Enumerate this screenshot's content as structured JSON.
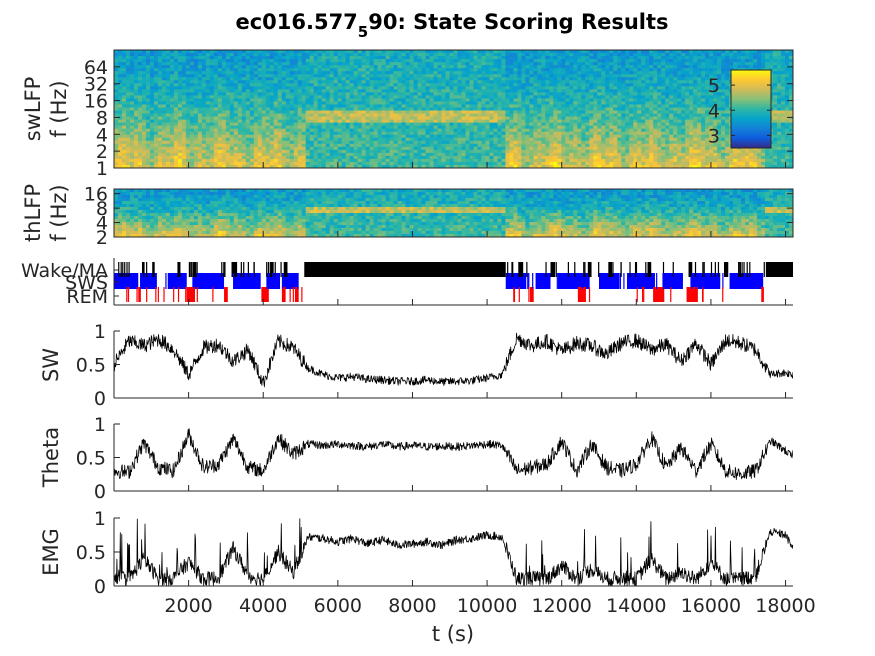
{
  "chart_data": {
    "type": "line",
    "title_main": "ec016.577",
    "title_sub": "5",
    "title_tail": "90: State Scoring Results",
    "x_label": "t (s)",
    "x_range": [
      0,
      18200
    ],
    "x_ticks": [
      "2000",
      "4000",
      "6000",
      "8000",
      "10000",
      "12000",
      "14000",
      "16000",
      "18000"
    ],
    "x_tick_values": [
      2000,
      4000,
      6000,
      8000,
      10000,
      12000,
      14000,
      16000,
      18000
    ],
    "colors": {
      "parula": [
        "#352a87",
        "#0f5cdd",
        "#1481d6",
        "#06a4ca",
        "#2eb7a4",
        "#87bf77",
        "#d1bb59",
        "#fec832",
        "#f9fb0e"
      ],
      "wake": "#000000",
      "sws": "#0000ff",
      "rem": "#ff0000",
      "trace": "#000000"
    },
    "panels": [
      {
        "id": "swLFP",
        "kind": "spectrogram",
        "ylabel_line1": "swLFP",
        "ylabel_line2": "f (Hz)",
        "y_scale": "log",
        "y_ticks": [
          "1",
          "2",
          "4",
          "8",
          "16",
          "32",
          "64"
        ],
        "y_range": [
          1,
          128
        ],
        "colorbar": {
          "ticks": [
            "3",
            "4",
            "5"
          ],
          "range": [
            2.5,
            5.6
          ]
        }
      },
      {
        "id": "thLFP",
        "kind": "spectrogram",
        "ylabel_line1": "thLFP",
        "ylabel_line2": "f (Hz)",
        "y_scale": "log",
        "y_ticks": [
          "2",
          "4",
          "8",
          "16"
        ],
        "y_range": [
          2,
          20
        ]
      },
      {
        "id": "states",
        "kind": "hypnogram",
        "y_ticks": [
          "Wake/MA",
          "SWS",
          "REM"
        ],
        "episodes": {
          "wake": [
            [
              5100,
              10500
            ],
            [
              17500,
              18200
            ],
            [
              750,
              820
            ],
            [
              1700,
              1780
            ],
            [
              2100,
              2200
            ],
            [
              3150,
              3300
            ],
            [
              4200,
              4280
            ],
            [
              4550,
              4650
            ],
            [
              10850,
              10950
            ],
            [
              11700,
              11800
            ],
            [
              12700,
              12800
            ],
            [
              13250,
              13350
            ],
            [
              14300,
              14400
            ],
            [
              15400,
              15500
            ],
            [
              16350,
              16450
            ]
          ],
          "sws": [
            [
              0,
              650
            ],
            [
              700,
              1150
            ],
            [
              1450,
              1950
            ],
            [
              2100,
              2950
            ],
            [
              3200,
              3900
            ],
            [
              4100,
              4450
            ],
            [
              4500,
              4950
            ],
            [
              10500,
              11050
            ],
            [
              11300,
              11700
            ],
            [
              11900,
              12750
            ],
            [
              13000,
              13550
            ],
            [
              13750,
              14500
            ],
            [
              14700,
              15250
            ],
            [
              15450,
              16250
            ],
            [
              16500,
              17400
            ]
          ],
          "rem": [
            [
              650,
              720
            ],
            [
              1950,
              2150
            ],
            [
              2950,
              3050
            ],
            [
              3950,
              4150
            ],
            [
              4500,
              4600
            ],
            [
              4850,
              4950
            ],
            [
              10700,
              10750
            ],
            [
              11150,
              11250
            ],
            [
              12450,
              12650
            ],
            [
              14450,
              14750
            ],
            [
              15350,
              15650
            ],
            [
              17350,
              17420
            ]
          ]
        }
      },
      {
        "id": "SW",
        "kind": "trace",
        "ylabel": "SW",
        "y_range": [
          0,
          1
        ],
        "y_ticks": [
          "0",
          "0.5",
          "1"
        ],
        "x": [
          0,
          400,
          800,
          1200,
          1600,
          2000,
          2400,
          2800,
          3200,
          3600,
          4000,
          4400,
          4800,
          5200,
          5600,
          6000,
          6400,
          6800,
          7200,
          7600,
          8000,
          8400,
          8800,
          9200,
          9600,
          10000,
          10400,
          10800,
          11200,
          11600,
          12000,
          12400,
          12800,
          13200,
          13600,
          14000,
          14400,
          14800,
          15200,
          15600,
          16000,
          16400,
          16800,
          17200,
          17600,
          18000,
          18200
        ],
        "values": [
          0.5,
          0.85,
          0.78,
          0.88,
          0.72,
          0.35,
          0.75,
          0.8,
          0.55,
          0.72,
          0.22,
          0.85,
          0.75,
          0.45,
          0.35,
          0.3,
          0.32,
          0.28,
          0.27,
          0.25,
          0.25,
          0.27,
          0.24,
          0.25,
          0.26,
          0.3,
          0.35,
          0.9,
          0.78,
          0.85,
          0.7,
          0.82,
          0.78,
          0.65,
          0.82,
          0.86,
          0.72,
          0.8,
          0.55,
          0.82,
          0.5,
          0.86,
          0.82,
          0.72,
          0.35,
          0.38,
          0.35
        ]
      },
      {
        "id": "Theta",
        "kind": "trace",
        "ylabel": "Theta",
        "y_range": [
          0,
          1
        ],
        "y_ticks": [
          "0",
          "0.5",
          "1"
        ],
        "x": [
          0,
          400,
          800,
          1200,
          1600,
          2000,
          2400,
          2800,
          3200,
          3600,
          4000,
          4400,
          4800,
          5200,
          5600,
          6000,
          6400,
          6800,
          7200,
          7600,
          8000,
          8400,
          8800,
          9200,
          9600,
          10000,
          10400,
          10800,
          11200,
          11600,
          12000,
          12400,
          12800,
          13200,
          13600,
          14000,
          14400,
          14800,
          15200,
          15600,
          16000,
          16400,
          16800,
          17200,
          17600,
          18000,
          18200
        ],
        "values": [
          0.3,
          0.28,
          0.72,
          0.35,
          0.3,
          0.85,
          0.35,
          0.4,
          0.78,
          0.35,
          0.3,
          0.8,
          0.55,
          0.7,
          0.68,
          0.7,
          0.68,
          0.66,
          0.7,
          0.66,
          0.68,
          0.66,
          0.67,
          0.66,
          0.68,
          0.7,
          0.68,
          0.3,
          0.35,
          0.4,
          0.75,
          0.3,
          0.7,
          0.35,
          0.3,
          0.4,
          0.8,
          0.35,
          0.65,
          0.3,
          0.7,
          0.3,
          0.25,
          0.3,
          0.75,
          0.6,
          0.5
        ]
      },
      {
        "id": "EMG",
        "kind": "trace",
        "ylabel": "EMG",
        "y_range": [
          0,
          1
        ],
        "y_ticks": [
          "0",
          "0.5",
          "1"
        ],
        "x": [
          0,
          400,
          800,
          1200,
          1600,
          2000,
          2400,
          2800,
          3200,
          3600,
          4000,
          4400,
          4800,
          5200,
          5600,
          6000,
          6400,
          6800,
          7200,
          7600,
          8000,
          8400,
          8800,
          9200,
          9600,
          10000,
          10400,
          10800,
          11200,
          11600,
          12000,
          12400,
          12800,
          13200,
          13600,
          14000,
          14400,
          14800,
          15200,
          15600,
          16000,
          16400,
          16800,
          17200,
          17600,
          18000,
          18200
        ],
        "values": [
          0.15,
          0.1,
          0.4,
          0.1,
          0.12,
          0.35,
          0.1,
          0.12,
          0.55,
          0.15,
          0.1,
          0.5,
          0.2,
          0.72,
          0.7,
          0.65,
          0.7,
          0.62,
          0.68,
          0.6,
          0.62,
          0.65,
          0.6,
          0.68,
          0.7,
          0.75,
          0.72,
          0.1,
          0.12,
          0.1,
          0.3,
          0.1,
          0.25,
          0.1,
          0.12,
          0.1,
          0.4,
          0.1,
          0.2,
          0.1,
          0.35,
          0.1,
          0.1,
          0.15,
          0.8,
          0.75,
          0.55
        ]
      }
    ]
  }
}
